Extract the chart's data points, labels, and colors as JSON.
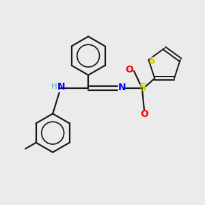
{
  "background_color": "#ebebeb",
  "bond_color": "#1a1a1a",
  "atom_colors": {
    "N": "#0000ff",
    "S_sulfo": "#cccc00",
    "S_thio": "#cccc00",
    "O": "#ff0000",
    "H": "#5aacac",
    "C": "#1a1a1a"
  },
  "figsize": [
    3.0,
    3.0
  ],
  "dpi": 100
}
